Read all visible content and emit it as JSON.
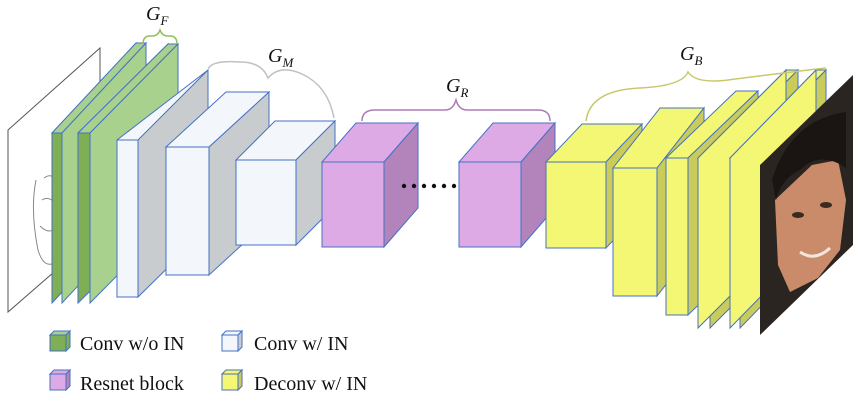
{
  "groups": {
    "f": {
      "letter": "G",
      "sub": "F"
    },
    "m": {
      "letter": "G",
      "sub": "M"
    },
    "r": {
      "letter": "G",
      "sub": "R"
    },
    "b": {
      "letter": "G",
      "sub": "B"
    }
  },
  "legend": {
    "conv_wo_in": "Conv w/o IN",
    "conv_w_in": "Conv w/ IN",
    "resnet": "Resnet block",
    "deconv": "Deconv w/ IN"
  },
  "colors": {
    "conv_wo_in_front": "#7eae55",
    "conv_wo_in_side": "#a9d18e",
    "conv_w_in_front": "#f3f7fb",
    "conv_w_in_side": "#c9cccf",
    "resnet_front": "#ddaae6",
    "resnet_side": "#b284bb",
    "deconv_front": "#f4f774",
    "deconv_side": "#c9cc5a",
    "edge": "#4472c4",
    "brace_f": "#8fbf5a",
    "brace_m": "#c0c0c0",
    "brace_r": "#b07ab8",
    "brace_b": "#c8c86a"
  },
  "icons": {
    "input": "sketch-face-icon",
    "output": "photo-face-icon"
  }
}
